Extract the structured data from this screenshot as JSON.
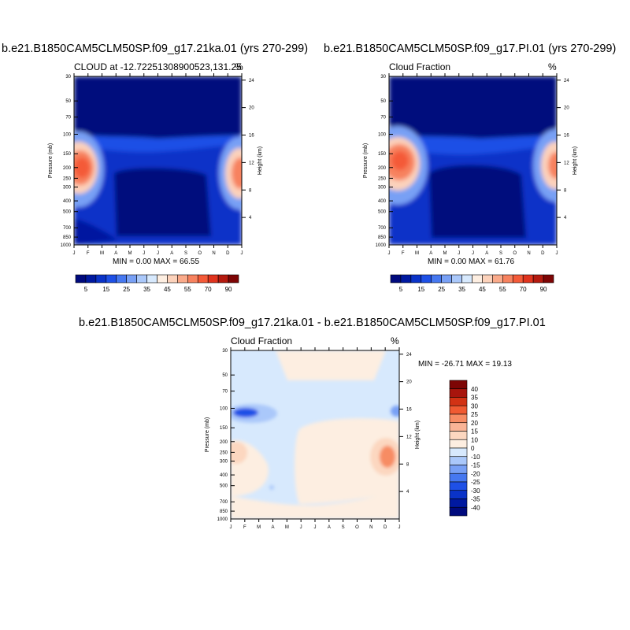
{
  "panels": [
    {
      "id": "a",
      "title": "b.e21.B1850CAM5CLM50SP.f09_g17.21ka.01 (yrs 270-299)",
      "left_label": "CLOUD at -12.72251308900523,131.25",
      "right_label": "%",
      "stats": "MIN =   0.00 MAX =  66.55"
    },
    {
      "id": "b",
      "title": "b.e21.B1850CAM5CLM50SP.f09_g17.PI.01 (yrs 270-299)",
      "left_label": "Cloud Fraction",
      "right_label": "%",
      "stats": "MIN =   0.00 MAX =  61.76"
    },
    {
      "id": "c",
      "title": "b.e21.B1850CAM5CLM50SP.f09_g17.21ka.01 - b.e21.B1850CAM5CLM50SP.f09_g17.PI.01",
      "left_label": "Cloud Fraction",
      "right_label": "%",
      "stats": "MIN = -26.71 MAX =  19.13"
    }
  ],
  "chart_data": [
    {
      "type": "heatmap",
      "panel": "a",
      "ylabel": "Pressure (mb)",
      "y2label": "Height (km)",
      "x_ticks": [
        "J",
        "F",
        "M",
        "A",
        "M",
        "J",
        "J",
        "A",
        "S",
        "O",
        "N",
        "D",
        "J"
      ],
      "y_ticks": [
        "30",
        "50",
        "70",
        "100",
        "150",
        "200",
        "250",
        "300",
        "400",
        "500",
        "700",
        "850",
        "1000"
      ],
      "y2_ticks": [
        "24",
        "20",
        "16",
        "12",
        "8",
        "4"
      ],
      "y_range": [
        1000,
        30
      ],
      "y_scale": "log",
      "colorbar_labels": [
        "5",
        "15",
        "25",
        "35",
        "45",
        "55",
        "70",
        "90"
      ],
      "colorbar_placement": "bottom",
      "min": 0.0,
      "max": 66.55
    },
    {
      "type": "heatmap",
      "panel": "b",
      "ylabel": "Pressure (mb)",
      "y2label": "Height (km)",
      "x_ticks": [
        "J",
        "F",
        "M",
        "A",
        "M",
        "J",
        "J",
        "A",
        "S",
        "O",
        "N",
        "D",
        "J"
      ],
      "y_ticks": [
        "30",
        "50",
        "70",
        "100",
        "150",
        "200",
        "250",
        "300",
        "400",
        "500",
        "700",
        "850",
        "1000"
      ],
      "y2_ticks": [
        "24",
        "20",
        "16",
        "12",
        "8",
        "4"
      ],
      "y_range": [
        1000,
        30
      ],
      "y_scale": "log",
      "colorbar_labels": [
        "5",
        "15",
        "25",
        "35",
        "45",
        "55",
        "70",
        "90"
      ],
      "colorbar_placement": "bottom",
      "min": 0.0,
      "max": 61.76
    },
    {
      "type": "heatmap",
      "panel": "c",
      "ylabel": "Pressure (mb)",
      "y2label": "Height (km)",
      "x_ticks": [
        "J",
        "F",
        "M",
        "A",
        "M",
        "J",
        "J",
        "A",
        "S",
        "O",
        "N",
        "D",
        "J"
      ],
      "y_ticks": [
        "30",
        "50",
        "70",
        "100",
        "150",
        "200",
        "250",
        "300",
        "400",
        "500",
        "700",
        "850",
        "1000"
      ],
      "y2_ticks": [
        "24",
        "20",
        "16",
        "12",
        "8",
        "4"
      ],
      "y_range": [
        1000,
        30
      ],
      "y_scale": "log",
      "colorbar_labels": [
        "40",
        "35",
        "30",
        "25",
        "20",
        "15",
        "10",
        "0",
        "-10",
        "-15",
        "-20",
        "-25",
        "-30",
        "-35",
        "-40"
      ],
      "colorbar_placement": "right",
      "min": -26.71,
      "max": 19.13
    }
  ],
  "colors": {
    "abs_scale": [
      "#000a7d",
      "#0019a0",
      "#0a33c8",
      "#1e50e6",
      "#4678f0",
      "#78a0f5",
      "#aac8fa",
      "#d7e9fd",
      "#fdeee1",
      "#fcd2bb",
      "#faaa8a",
      "#f7825f",
      "#f45a38",
      "#e0341e",
      "#b41a0f",
      "#7d0505"
    ],
    "diff_scale": [
      "#7d0505",
      "#a8150d",
      "#d23214",
      "#f05a32",
      "#f78c64",
      "#fab496",
      "#fcd7c0",
      "#fdeee1",
      "#d7e9fd",
      "#aac8fa",
      "#78a0f5",
      "#4678f0",
      "#1e50e6",
      "#0a33c8",
      "#0019a0",
      "#000a7d"
    ]
  }
}
